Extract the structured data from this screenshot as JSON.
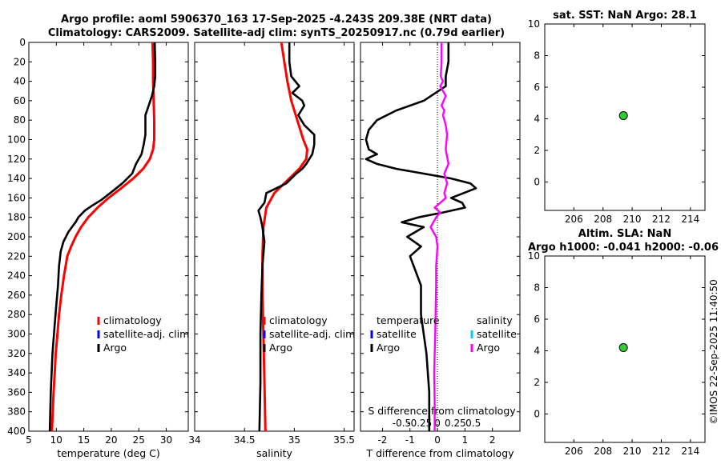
{
  "titles": {
    "line1": "Argo profile: aoml 5906370_163 17-Sep-2025 -4.243S 209.38E (NRT data)",
    "line2": "Climatology: CARS2009. Satellite-adj clim: synTS_20250917.nc (0.79d earlier)"
  },
  "timestamp": "©IMOS 22-Sep-2025 11:40:50",
  "colors": {
    "climatology": "#ff0000",
    "satellite": "#0000ff",
    "argo": "#000000",
    "sal_diff": "#ff00ff",
    "sal_sat": "#00ccff",
    "marker": "#33cc33"
  },
  "chart_data": [
    {
      "id": "temperature",
      "type": "line",
      "xlabel": "temperature (deg C)",
      "xlim": [
        5,
        34
      ],
      "xticks": [
        5,
        10,
        15,
        20,
        25,
        30
      ],
      "ylim": [
        0,
        400
      ],
      "yticks": [
        0,
        20,
        40,
        60,
        80,
        100,
        120,
        140,
        160,
        180,
        200,
        220,
        240,
        260,
        280,
        300,
        320,
        340,
        360,
        380,
        400
      ],
      "legend": [
        "climatology",
        "satellite-adj. clim",
        "Argo"
      ],
      "series": [
        {
          "name": "climatology",
          "color": "#ff0000",
          "x": [
            27.5,
            27.6,
            27.6,
            27.7,
            27.8,
            27.8,
            27.6,
            27.0,
            25.8,
            24.0,
            21.8,
            19.5,
            17.5,
            15.8,
            14.5,
            13.5,
            12.7,
            12.0,
            11.4,
            10.9,
            10.5,
            10.2,
            9.9,
            9.7,
            9.5,
            9.2
          ],
          "y": [
            0,
            20,
            40,
            60,
            80,
            100,
            110,
            120,
            130,
            140,
            150,
            160,
            170,
            180,
            190,
            200,
            210,
            220,
            240,
            260,
            280,
            300,
            320,
            340,
            360,
            400
          ]
        },
        {
          "name": "Argo",
          "color": "#000000",
          "x": [
            27.9,
            28.0,
            28.0,
            27.8,
            27.4,
            26.8,
            26.2,
            26.2,
            26.2,
            25.9,
            25.5,
            24.5,
            23.8,
            22.0,
            19.8,
            18.2,
            16.5,
            15.2,
            14.0,
            13.5,
            12.2,
            11.3,
            10.8,
            10.5,
            10.3,
            10.0,
            9.7,
            9.3,
            9.0,
            8.8
          ],
          "y": [
            0,
            20,
            35,
            45,
            55,
            65,
            75,
            85,
            95,
            105,
            115,
            125,
            135,
            145,
            155,
            162,
            168,
            173,
            180,
            185,
            195,
            205,
            215,
            230,
            250,
            270,
            290,
            320,
            360,
            400
          ]
        }
      ]
    },
    {
      "id": "salinity",
      "type": "line",
      "xlabel": "salinity",
      "xlim": [
        34,
        35.6
      ],
      "xticks": [
        34,
        34.5,
        35,
        35.5
      ],
      "ylim": [
        0,
        400
      ],
      "legend": [
        "climatology",
        "satellite-adj. clim",
        "Argo"
      ],
      "series": [
        {
          "name": "climatology",
          "color": "#ff0000",
          "x": [
            34.87,
            34.9,
            34.93,
            34.97,
            35.03,
            35.09,
            35.13,
            35.12,
            35.05,
            34.95,
            34.8,
            34.72,
            34.69,
            34.68,
            34.68,
            34.69,
            34.7,
            34.71
          ],
          "y": [
            0,
            20,
            40,
            60,
            80,
            100,
            110,
            120,
            130,
            140,
            155,
            170,
            190,
            220,
            260,
            300,
            350,
            400
          ]
        },
        {
          "name": "Argo",
          "color": "#000000",
          "x": [
            34.95,
            34.95,
            34.97,
            35.05,
            34.98,
            35.08,
            35.1,
            35.04,
            35.1,
            35.2,
            35.2,
            35.18,
            35.12,
            35.08,
            35.02,
            34.97,
            34.92,
            34.82,
            34.72,
            34.7,
            34.64,
            34.66,
            34.68,
            34.7,
            34.68,
            34.67,
            34.66,
            34.66,
            34.65
          ],
          "y": [
            0,
            20,
            35,
            45,
            52,
            60,
            65,
            75,
            85,
            95,
            105,
            115,
            125,
            130,
            135,
            140,
            145,
            150,
            155,
            165,
            173,
            180,
            190,
            205,
            230,
            260,
            300,
            350,
            400
          ]
        }
      ]
    },
    {
      "id": "difference",
      "type": "line",
      "xlabel": "T difference from climatology",
      "x2label": "S difference from climatology",
      "xlim": [
        -2.8,
        3.0
      ],
      "xticks": [
        -2,
        -1,
        0,
        1,
        2
      ],
      "x2ticks": [
        "-0.5",
        "-0.25",
        "0",
        "0.25",
        "0.5"
      ],
      "ylim": [
        0,
        400
      ],
      "legend_left_title": "temperature",
      "legend_right_title": "salinity",
      "legend": [
        "satellite",
        "Argo"
      ],
      "series": [
        {
          "name": "T difference (Argo)",
          "color": "#000000",
          "x": [
            0.4,
            0.4,
            0.3,
            0.3,
            -0.5,
            -1.5,
            -2.2,
            -2.5,
            -2.6,
            -2.5,
            -2.2,
            -2.6,
            -2.2,
            -1.5,
            -0.5,
            0.5,
            1.2,
            1.4,
            0.5,
            0.9,
            1.0,
            0.2,
            -0.7,
            -1.3,
            -0.5,
            -1.1,
            -0.6,
            -1.0,
            -0.6,
            -0.6,
            -0.5,
            -0.4,
            -0.3,
            -0.3
          ],
          "y": [
            0,
            20,
            35,
            45,
            60,
            70,
            80,
            90,
            100,
            110,
            115,
            120,
            125,
            130,
            135,
            140,
            145,
            150,
            160,
            165,
            170,
            175,
            180,
            185,
            190,
            200,
            210,
            220,
            250,
            280,
            300,
            320,
            360,
            400
          ]
        },
        {
          "name": "S difference (Argo)",
          "color": "#ff00ff",
          "x": [
            0.15,
            0.15,
            0.12,
            0.2,
            0.1,
            0.3,
            0.15,
            0.25,
            0.2,
            0.3,
            0.35,
            0.3,
            0.4,
            0.25,
            0.35,
            0.3,
            0.25,
            0.3,
            0.1,
            -0.1,
            0.1,
            -0.05,
            -0.15,
            -0.25,
            -0.05,
            0.0,
            -0.05,
            -0.05,
            -0.07,
            -0.08,
            -0.1,
            -0.12,
            -0.1,
            -0.1
          ],
          "y": [
            0,
            20,
            35,
            40,
            45,
            55,
            65,
            70,
            75,
            85,
            95,
            110,
            125,
            135,
            145,
            150,
            155,
            160,
            165,
            170,
            175,
            180,
            185,
            190,
            200,
            210,
            230,
            250,
            280,
            300,
            320,
            340,
            370,
            400
          ]
        }
      ]
    },
    {
      "id": "sst",
      "type": "scatter",
      "title": "sat. SST: NaN Argo: 28.1",
      "xlim": [
        204,
        215
      ],
      "xticks": [
        206,
        208,
        210,
        212,
        214
      ],
      "ylim": [
        -1.8,
        10
      ],
      "yticks": [
        0,
        2,
        4,
        6,
        8,
        10
      ],
      "points": [
        {
          "x": 209.4,
          "y": 4.2
        }
      ]
    },
    {
      "id": "sla",
      "type": "scatter",
      "title": "Altim. SLA: NaN",
      "subtitle": "Argo h1000: -0.041 h2000: -0.06",
      "xlim": [
        204,
        215
      ],
      "xticks": [
        206,
        208,
        210,
        212,
        214
      ],
      "ylim": [
        -1.8,
        10
      ],
      "yticks": [
        0,
        2,
        4,
        6,
        8,
        10
      ],
      "points": [
        {
          "x": 209.4,
          "y": 4.2
        }
      ]
    }
  ]
}
